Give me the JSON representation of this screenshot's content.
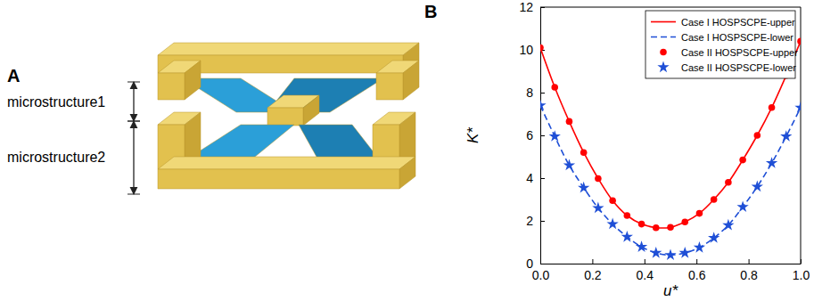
{
  "figure": {
    "panel_a": {
      "label": "A",
      "labels": [
        "microstructure1",
        "microstructure2"
      ]
    }
  },
  "chart_data": {
    "type": "line",
    "panel_label": "B",
    "x_label": "u*",
    "y_label": "K*",
    "x": [
      0.0,
      0.0556,
      0.1111,
      0.1667,
      0.2222,
      0.2778,
      0.3333,
      0.3889,
      0.4444,
      0.5,
      0.5556,
      0.6111,
      0.6667,
      0.7222,
      0.7778,
      0.8333,
      0.8889,
      0.9444,
      1.0
    ],
    "xlim": [
      0,
      1
    ],
    "xticks": [
      {
        "value": 0,
        "label": "0.0"
      },
      {
        "value": 0.2,
        "label": "0.2"
      },
      {
        "value": 0.4,
        "label": "0.4"
      },
      {
        "value": 0.6,
        "label": "0.6"
      },
      {
        "value": 0.8,
        "label": "0.8"
      },
      {
        "value": 1,
        "label": "1.0"
      }
    ],
    "ylim": [
      0,
      12
    ],
    "yticks": [
      0,
      2,
      4,
      6,
      8,
      10,
      12
    ],
    "grid": false,
    "legend": "upper-right",
    "series": [
      {
        "name": "Case I  HOSPSCPE-upper",
        "type": "line",
        "line_style": "solid",
        "color": "#ff0000",
        "values": [
          10.1,
          8.25,
          6.65,
          5.2,
          3.98,
          2.95,
          2.25,
          1.85,
          1.68,
          1.7,
          1.95,
          2.35,
          3.0,
          3.8,
          4.85,
          6.0,
          7.3,
          8.8,
          10.4
        ]
      },
      {
        "name": "Case I  HOSPSCPE-lower",
        "type": "line",
        "line_style": "dashed",
        "color": "#1f4fd6",
        "values": [
          7.4,
          5.95,
          4.6,
          3.55,
          2.6,
          1.85,
          1.25,
          0.78,
          0.5,
          0.4,
          0.5,
          0.75,
          1.2,
          1.8,
          2.65,
          3.6,
          4.7,
          5.95,
          7.3
        ]
      },
      {
        "name": "Case II HOSPSCPE-upper",
        "type": "scatter",
        "marker": "circle",
        "color": "#ff0000",
        "values": [
          10.1,
          8.25,
          6.65,
          5.2,
          3.98,
          2.95,
          2.25,
          1.85,
          1.68,
          1.7,
          1.95,
          2.35,
          3.0,
          3.8,
          4.85,
          6.0,
          7.3,
          8.8,
          10.4
        ]
      },
      {
        "name": "Case II HOSPSCPE-lower",
        "type": "scatter",
        "marker": "star",
        "color": "#1f4fd6",
        "values": [
          7.4,
          5.95,
          4.6,
          3.55,
          2.6,
          1.85,
          1.25,
          0.78,
          0.5,
          0.4,
          0.5,
          0.75,
          1.2,
          1.8,
          2.65,
          3.6,
          4.7,
          5.95,
          7.3
        ]
      }
    ]
  }
}
